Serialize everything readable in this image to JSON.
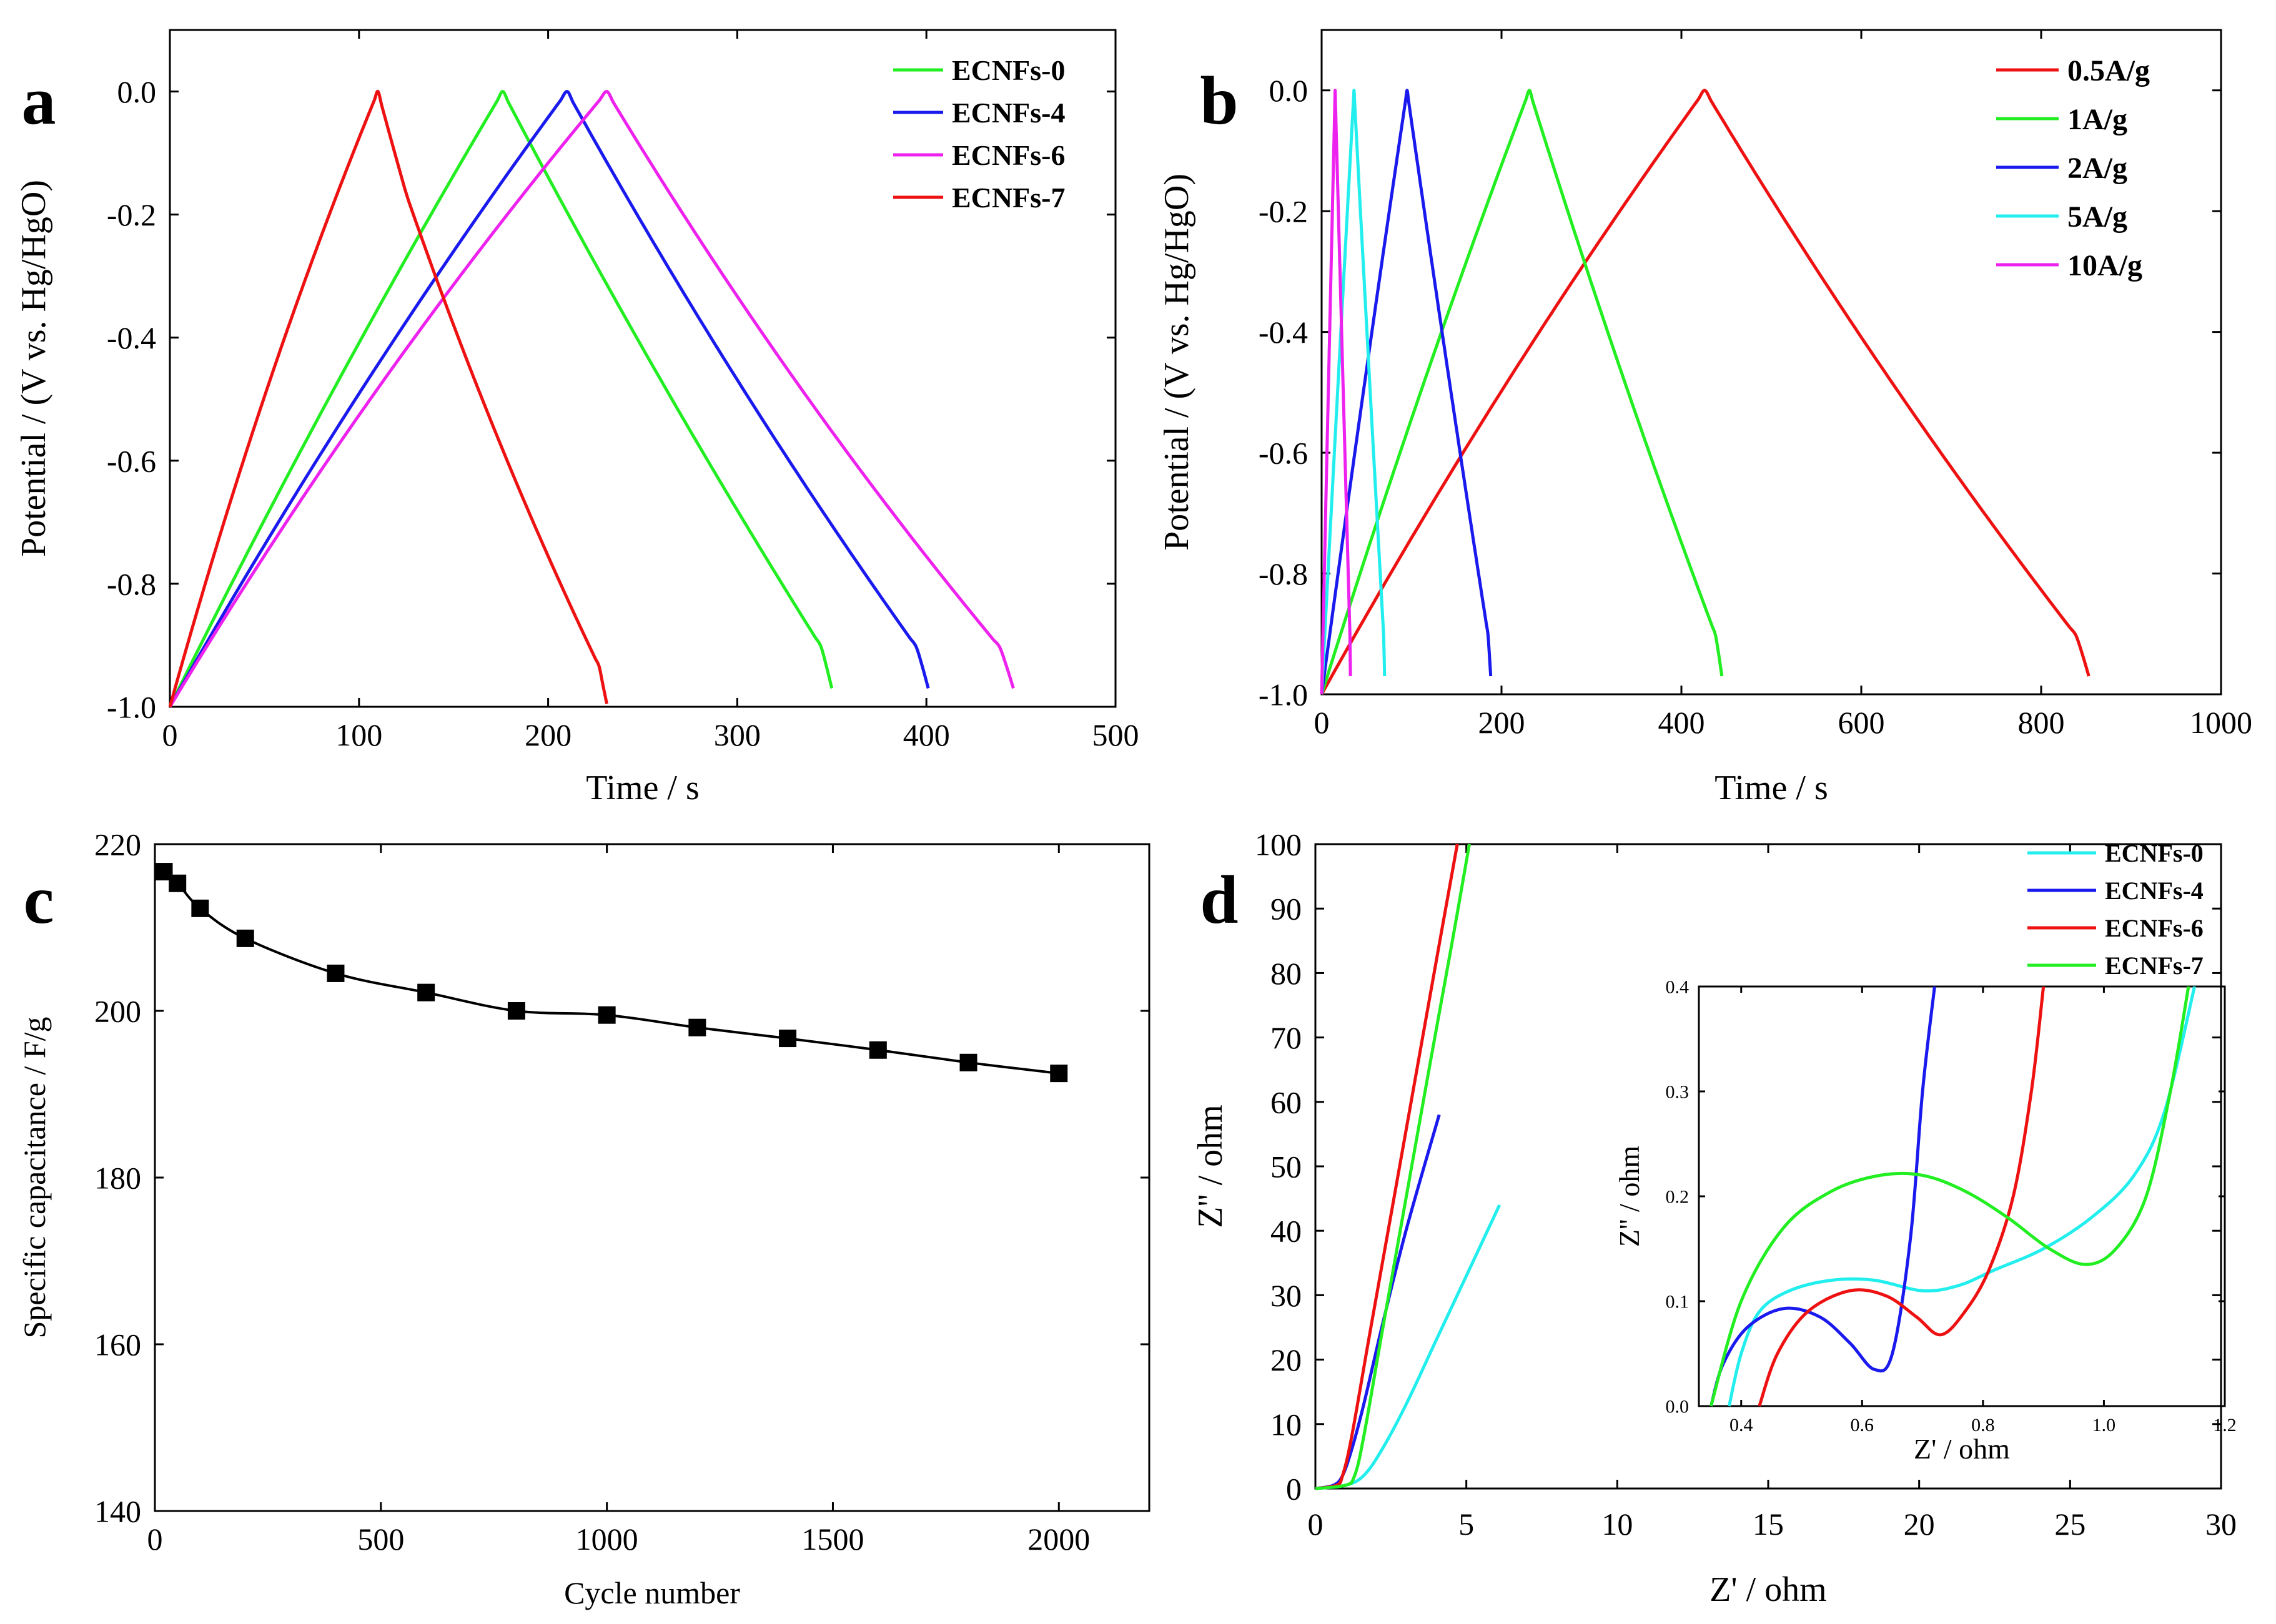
{
  "chart_data": [
    {
      "panel": "a",
      "type": "line",
      "xlabel": "Time / s",
      "ylabel": "Potential / (V vs. Hg/HgO)",
      "xlim": [
        0,
        500
      ],
      "ylim": [
        -1.0,
        0.1
      ],
      "xticks": [
        "0",
        "100",
        "200",
        "300",
        "400",
        "500"
      ],
      "yticks": [
        "-1.0",
        "-0.8",
        "-0.6",
        "-0.4",
        "-0.2",
        "0.0"
      ],
      "legend_position": "top-right",
      "series": [
        {
          "name": "ECNFs-0",
          "color": "#22ee22",
          "charge_end": 176,
          "discharge_end": 350,
          "shape": 0.1
        },
        {
          "name": "ECNFs-4",
          "color": "#1a1aee",
          "charge_end": 210,
          "discharge_end": 401,
          "shape": 0.14
        },
        {
          "name": "ECNFs-6",
          "color": "#ee22ee",
          "charge_end": 231,
          "discharge_end": 446,
          "shape": 0.18
        },
        {
          "name": "ECNFs-7",
          "color": "#ee1111",
          "charge_end": 110,
          "discharge_end": 231,
          "shape": 0.22
        }
      ]
    },
    {
      "panel": "b",
      "type": "line",
      "xlabel": "Time / s",
      "ylabel": "Potential / (V vs. Hg/HgO)",
      "xlim": [
        0,
        1000
      ],
      "ylim": [
        -1.0,
        0.1
      ],
      "xticks": [
        "0",
        "200",
        "400",
        "600",
        "800",
        "1000"
      ],
      "yticks": [
        "-1.0",
        "-0.8",
        "-0.6",
        "-0.4",
        "-0.2",
        "0.0"
      ],
      "legend_position": "top-right",
      "series": [
        {
          "name": "0.5A/g",
          "color": "#ee1111",
          "charge_end": 426,
          "discharge_end": 853,
          "shape": 0.14
        },
        {
          "name": "1A/g",
          "color": "#22ee22",
          "charge_end": 231,
          "discharge_end": 445,
          "shape": 0.1
        },
        {
          "name": "2A/g",
          "color": "#1a1aee",
          "charge_end": 95,
          "discharge_end": 188,
          "shape": 0.05
        },
        {
          "name": "5A/g",
          "color": "#22eeee",
          "charge_end": 36,
          "discharge_end": 70,
          "shape": 0.03
        },
        {
          "name": "10A/g",
          "color": "#ee22ee",
          "charge_end": 15,
          "discharge_end": 32,
          "shape": 0.02
        }
      ]
    },
    {
      "panel": "c",
      "type": "line",
      "xlabel": "Cycle number",
      "ylabel": "Specific capacitance / F/g",
      "xlim": [
        0,
        2200
      ],
      "ylim": [
        140,
        220
      ],
      "xticks": [
        "0",
        "500",
        "1000",
        "1500",
        "2000"
      ],
      "yticks": [
        "140",
        "160",
        "180",
        "200",
        "220"
      ],
      "series": [
        {
          "name": "capacitance",
          "color": "#000000",
          "x": [
            20,
            50,
            100,
            200,
            400,
            600,
            800,
            1000,
            1200,
            1400,
            1600,
            1800,
            2000
          ],
          "y": [
            216.7,
            215.3,
            212.3,
            208.7,
            204.5,
            202.2,
            200.0,
            199.5,
            198.0,
            196.7,
            195.3,
            193.8,
            192.5
          ]
        }
      ]
    },
    {
      "panel": "d",
      "type": "line",
      "xlabel": "Z' / ohm",
      "ylabel": "Z'' / ohm",
      "xlim": [
        0,
        30
      ],
      "ylim": [
        0,
        100
      ],
      "xticks": [
        "0",
        "5",
        "10",
        "15",
        "20",
        "25",
        "30"
      ],
      "yticks": [
        "0",
        "10",
        "20",
        "30",
        "40",
        "50",
        "60",
        "70",
        "80",
        "90",
        "100"
      ],
      "legend_position": "top-right",
      "series": [
        {
          "name": "ECNFs-0",
          "color": "#22eeee",
          "x": [
            0,
            1.0,
            1.6,
            2.2,
            3.0,
            4.0,
            5.0,
            6.1
          ],
          "y": [
            0,
            0.5,
            2,
            6,
            13,
            23,
            33,
            44
          ]
        },
        {
          "name": "ECNFs-4",
          "color": "#1a1aee",
          "x": [
            0,
            0.6,
            0.9,
            1.2,
            1.6,
            2.2,
            3.0,
            4.1
          ],
          "y": [
            0,
            0.5,
            2,
            6,
            13,
            25,
            40,
            58
          ]
        },
        {
          "name": "ECNFs-6",
          "color": "#ee1111",
          "x": [
            0,
            0.7,
            0.9,
            1.2,
            1.8,
            2.6,
            3.4,
            4.2,
            4.7
          ],
          "y": [
            0,
            0.5,
            2,
            8,
            24,
            45,
            66,
            87,
            100
          ]
        },
        {
          "name": "ECNFs-7",
          "color": "#22ee22",
          "x": [
            0,
            1.0,
            1.3,
            1.6,
            2.2,
            3.0,
            3.8,
            4.5,
            5.1
          ],
          "y": [
            0,
            0.5,
            2,
            8,
            24,
            45,
            66,
            84,
            100
          ]
        }
      ],
      "inset": {
        "xlabel": "Z' / ohm",
        "ylabel": "Z'' / ohm",
        "xlim": [
          0.33,
          1.2
        ],
        "ylim": [
          0,
          0.4
        ],
        "xticks": [
          "0.4",
          "0.6",
          "0.8",
          "1.0",
          "1.2"
        ],
        "yticks": [
          "0.0",
          "0.1",
          "0.2",
          "0.3",
          "0.4"
        ],
        "series": [
          {
            "name": "ECNFs-0",
            "color": "#22eeee",
            "x": [
              0.38,
              0.4,
              0.43,
              0.48,
              0.55,
              0.62,
              0.7,
              0.76,
              0.82,
              0.9,
              0.98,
              1.05,
              1.1,
              1.15
            ],
            "y": [
              0,
              0.05,
              0.09,
              0.11,
              0.12,
              0.12,
              0.11,
              0.115,
              0.13,
              0.15,
              0.18,
              0.22,
              0.28,
              0.4
            ]
          },
          {
            "name": "ECNFs-4",
            "color": "#1a1aee",
            "x": [
              0.35,
              0.37,
              0.41,
              0.47,
              0.53,
              0.58,
              0.62,
              0.65,
              0.68,
              0.7,
              0.72
            ],
            "y": [
              0,
              0.04,
              0.075,
              0.093,
              0.085,
              0.06,
              0.035,
              0.05,
              0.16,
              0.3,
              0.4
            ]
          },
          {
            "name": "ECNFs-6",
            "color": "#ee1111",
            "x": [
              0.43,
              0.46,
              0.51,
              0.58,
              0.64,
              0.69,
              0.73,
              0.77,
              0.81,
              0.85,
              0.88,
              0.9
            ],
            "y": [
              0,
              0.05,
              0.09,
              0.11,
              0.105,
              0.085,
              0.068,
              0.09,
              0.13,
              0.2,
              0.3,
              0.4
            ]
          },
          {
            "name": "ECNFs-7",
            "color": "#22ee22",
            "x": [
              0.35,
              0.4,
              0.47,
              0.55,
              0.63,
              0.7,
              0.77,
              0.84,
              0.91,
              0.97,
              1.02,
              1.07,
              1.11,
              1.14
            ],
            "y": [
              0,
              0.1,
              0.17,
              0.205,
              0.22,
              0.22,
              0.205,
              0.18,
              0.15,
              0.135,
              0.15,
              0.2,
              0.3,
              0.4
            ]
          }
        ]
      }
    }
  ]
}
